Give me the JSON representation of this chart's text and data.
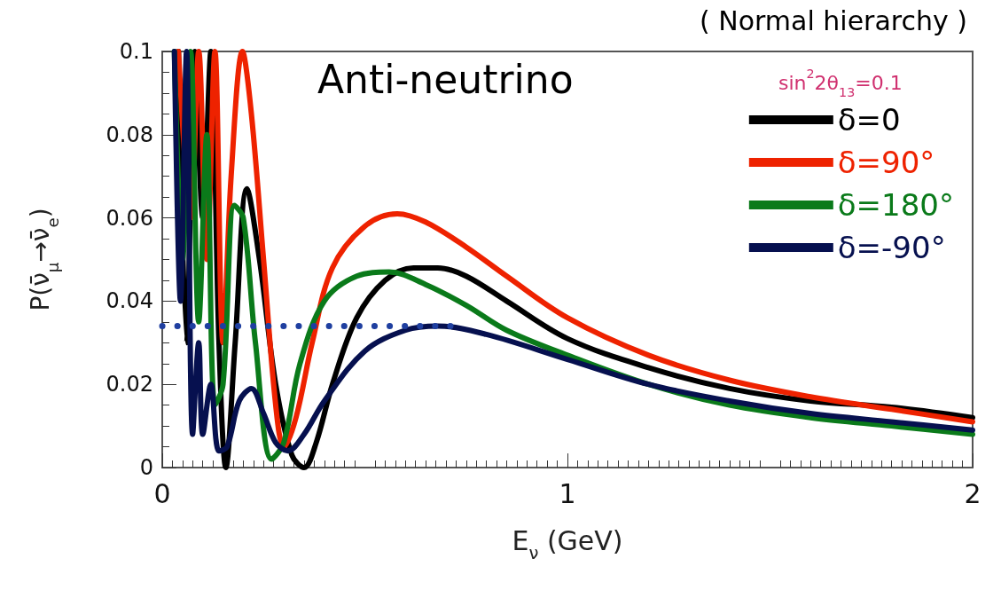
{
  "chart_data": {
    "type": "line",
    "xlabel": "E$_{ν}$ (GeV)",
    "ylabel": "P(ν̄$_{μ}$→ν̄$_{e}$)",
    "annotations": [
      "Anti-neutrino",
      "sin$^{2}$2θ$_{13}$=0.1",
      "( Normal hierarchy )"
    ],
    "xlim": [
      0,
      2
    ],
    "xticks": [
      0,
      1,
      2
    ],
    "ylim": [
      0,
      0.1
    ],
    "yticks": [
      0,
      0.02,
      0.04,
      0.06,
      0.08,
      0.1
    ],
    "grid": false,
    "legend": "top right",
    "line_style": "solid",
    "series": [
      {
        "name": "δ=0",
        "color": "#000000",
        "x": [
          0.04,
          0.06,
          0.08,
          0.1,
          0.12,
          0.14,
          0.157,
          0.18,
          0.209,
          0.24,
          0.28,
          0.32,
          0.35,
          0.38,
          0.42,
          0.48,
          0.55,
          0.62,
          0.68,
          0.75,
          0.85,
          1.0,
          1.2,
          1.4,
          1.6,
          1.8,
          2.0
        ],
        "values": [
          0.1,
          0.03,
          0.1,
          0.06,
          0.1,
          0.03,
          0,
          0.03,
          0.067,
          0.05,
          0.02,
          0.003,
          0,
          0.006,
          0.02,
          0.036,
          0.045,
          0.048,
          0.048,
          0.046,
          0.04,
          0.031,
          0.024,
          0.019,
          0.016,
          0.0145,
          0.012
        ]
      },
      {
        "name": "δ=90°",
        "color": "#ee2200",
        "x": [
          0.04,
          0.07,
          0.09,
          0.11,
          0.13,
          0.15,
          0.17,
          0.198,
          0.22,
          0.25,
          0.28,
          0.3,
          0.33,
          0.37,
          0.42,
          0.5,
          0.58,
          0.65,
          0.75,
          0.85,
          1.0,
          1.2,
          1.4,
          1.6,
          1.8,
          2.0
        ],
        "values": [
          0.1,
          0.06,
          0.1,
          0.05,
          0.1,
          0.03,
          0.07,
          0.1,
          0.085,
          0.05,
          0.015,
          0.005,
          0.012,
          0.03,
          0.048,
          0.058,
          0.061,
          0.059,
          0.053,
          0.046,
          0.036,
          0.027,
          0.021,
          0.017,
          0.014,
          0.011
        ]
      },
      {
        "name": "δ=180°",
        "color": "#0a7a1a",
        "x": [
          0.03,
          0.05,
          0.07,
          0.09,
          0.11,
          0.13,
          0.15,
          0.178,
          0.2,
          0.23,
          0.27,
          0.3,
          0.34,
          0.4,
          0.48,
          0.56,
          0.65,
          0.75,
          0.85,
          1.0,
          1.2,
          1.4,
          1.6,
          1.8,
          2.0
        ],
        "values": [
          0.1,
          0.05,
          0.1,
          0.035,
          0.08,
          0.015,
          0.02,
          0.063,
          0.06,
          0.03,
          0.002,
          0.006,
          0.025,
          0.04,
          0.046,
          0.047,
          0.044,
          0.039,
          0.033,
          0.027,
          0.02,
          0.015,
          0.012,
          0.01,
          0.008
        ]
      },
      {
        "name": "δ=-90°",
        "color": "#06104f",
        "x": [
          0.03,
          0.045,
          0.06,
          0.075,
          0.09,
          0.1,
          0.12,
          0.14,
          0.16,
          0.19,
          0.22,
          0.25,
          0.28,
          0.31,
          0.35,
          0.4,
          0.5,
          0.6,
          0.68,
          0.8,
          1.0,
          1.2,
          1.4,
          1.6,
          1.8,
          2.0
        ],
        "values": [
          0.1,
          0.04,
          0.1,
          0.008,
          0.03,
          0.008,
          0.02,
          0.004,
          0.005,
          0.016,
          0.019,
          0.013,
          0.006,
          0.004,
          0.008,
          0.016,
          0.028,
          0.033,
          0.034,
          0.032,
          0.026,
          0.02,
          0.016,
          0.013,
          0.011,
          0.009
        ]
      },
      {
        "color": "#1f3fa0",
        "line_style": "dotted",
        "x": [
          0,
          0.73
        ],
        "values": [
          0.034,
          0.034
        ]
      }
    ]
  }
}
